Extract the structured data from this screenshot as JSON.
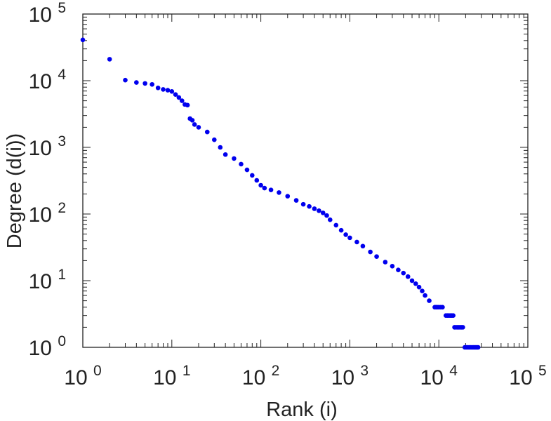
{
  "chart_data": {
    "type": "scatter",
    "title": "",
    "xlabel": "Rank (i)",
    "ylabel": "Degree (d(i))",
    "x_scale": "log",
    "y_scale": "log",
    "xlim": [
      1,
      100000
    ],
    "ylim": [
      1,
      100000
    ],
    "grid": false,
    "legend": "none",
    "marker_color": "#0000ee",
    "axis_color": "#222222",
    "x_ticks": [
      {
        "base": "10",
        "exp": "0"
      },
      {
        "base": "10",
        "exp": "1"
      },
      {
        "base": "10",
        "exp": "2"
      },
      {
        "base": "10",
        "exp": "3"
      },
      {
        "base": "10",
        "exp": "4"
      },
      {
        "base": "10",
        "exp": "5"
      }
    ],
    "y_ticks": [
      {
        "base": "10",
        "exp": "0"
      },
      {
        "base": "10",
        "exp": "1"
      },
      {
        "base": "10",
        "exp": "2"
      },
      {
        "base": "10",
        "exp": "3"
      },
      {
        "base": "10",
        "exp": "4"
      },
      {
        "base": "10",
        "exp": "5"
      }
    ],
    "series": [
      {
        "points": [
          [
            1,
            41000
          ],
          [
            2,
            21000
          ],
          [
            3,
            10200
          ],
          [
            4,
            9400
          ],
          [
            5,
            9100
          ],
          [
            6,
            8800
          ],
          [
            7,
            7800
          ],
          [
            8,
            7400
          ],
          [
            9,
            7200
          ],
          [
            10,
            6900
          ],
          [
            11,
            6200
          ],
          [
            12,
            5600
          ],
          [
            13,
            5000
          ],
          [
            14,
            4400
          ],
          [
            15,
            4300
          ],
          [
            16,
            2700
          ],
          [
            17,
            2550
          ],
          [
            18,
            2200
          ],
          [
            20,
            2000
          ],
          [
            25,
            1700
          ],
          [
            30,
            1300
          ],
          [
            35,
            1000
          ],
          [
            40,
            780
          ],
          [
            50,
            680
          ],
          [
            60,
            560
          ],
          [
            70,
            460
          ],
          [
            80,
            380
          ],
          [
            90,
            320
          ],
          [
            100,
            270
          ],
          [
            110,
            245
          ],
          [
            130,
            230
          ],
          [
            160,
            210
          ],
          [
            200,
            185
          ],
          [
            250,
            160
          ],
          [
            300,
            140
          ],
          [
            350,
            130
          ],
          [
            400,
            120
          ],
          [
            450,
            112
          ],
          [
            500,
            104
          ],
          [
            550,
            95
          ],
          [
            600,
            82
          ],
          [
            700,
            68
          ],
          [
            800,
            57
          ],
          [
            900,
            49
          ],
          [
            1000,
            44
          ],
          [
            1200,
            38
          ],
          [
            1400,
            33
          ],
          [
            1700,
            27
          ],
          [
            2000,
            23
          ],
          [
            2500,
            19
          ],
          [
            3000,
            16.5
          ],
          [
            3500,
            14.5
          ],
          [
            4000,
            13
          ],
          [
            4500,
            11.5
          ],
          [
            5000,
            10
          ],
          [
            5500,
            9
          ],
          [
            6000,
            8
          ],
          [
            6500,
            7
          ],
          [
            7000,
            6
          ],
          [
            7800,
            5
          ],
          [
            9000,
            4
          ],
          [
            9300,
            4
          ],
          [
            9600,
            4
          ],
          [
            10000,
            4
          ],
          [
            10500,
            4
          ],
          [
            11000,
            4
          ],
          [
            12000,
            3
          ],
          [
            12500,
            3
          ],
          [
            13000,
            3
          ],
          [
            13500,
            3
          ],
          [
            14000,
            3
          ],
          [
            14500,
            3
          ],
          [
            15000,
            2
          ],
          [
            15600,
            2
          ],
          [
            16200,
            2
          ],
          [
            16800,
            2
          ],
          [
            17400,
            2
          ],
          [
            18000,
            2
          ],
          [
            18600,
            2
          ],
          [
            19600,
            1
          ],
          [
            20400,
            1
          ],
          [
            21200,
            1
          ],
          [
            22000,
            1
          ],
          [
            22800,
            1
          ],
          [
            23600,
            1
          ],
          [
            24400,
            1
          ],
          [
            25200,
            1
          ],
          [
            26000,
            1
          ],
          [
            26800,
            1
          ],
          [
            27600,
            1
          ]
        ]
      }
    ]
  }
}
